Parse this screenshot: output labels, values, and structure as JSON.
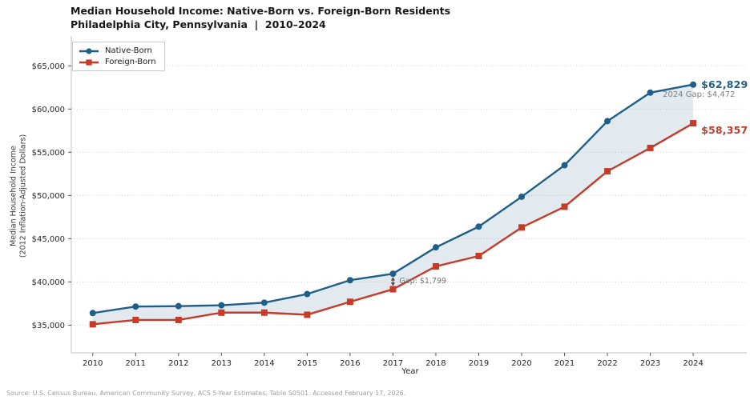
{
  "header": {
    "title_line1": "Median Household Income: Native-Born vs. Foreign-Born Residents",
    "title_line2": "Philadelphia City, Pennsylvania  |  2010–2024"
  },
  "source_note": "Source: U.S. Census Bureau. American Community Survey, ACS 5-Year Estimates, Table S0501. Accessed February 17, 2026.",
  "chart_data": {
    "type": "line",
    "x": [
      2010,
      2011,
      2012,
      2013,
      2014,
      2015,
      2016,
      2017,
      2018,
      2019,
      2020,
      2021,
      2022,
      2023,
      2024
    ],
    "series": [
      {
        "name": "Native-Born",
        "color": "#1f5f87",
        "marker": "circle",
        "values": [
          36400,
          37150,
          37200,
          37300,
          37600,
          38600,
          40200,
          40950,
          44000,
          46400,
          49850,
          53500,
          58600,
          61900,
          62829
        ]
      },
      {
        "name": "Foreign-Born",
        "color": "#c63a28",
        "marker": "square",
        "values": [
          35100,
          35600,
          35600,
          36450,
          36450,
          36200,
          37700,
          39151,
          41800,
          43000,
          46300,
          48700,
          52800,
          55500,
          58357
        ]
      }
    ],
    "fill_between": true,
    "xlabel": "Year",
    "ylabel_line1": "Median Household Income",
    "ylabel_line2": "(2012 Inflation-Adjusted Dollars)",
    "xlim": [
      2009.5,
      2025.25
    ],
    "ylim": [
      31800,
      68450
    ],
    "xticks": [
      2010,
      2011,
      2012,
      2013,
      2014,
      2015,
      2016,
      2017,
      2018,
      2019,
      2020,
      2021,
      2022,
      2023,
      2024
    ],
    "xtick_labels": [
      "2010",
      "2011",
      "2012",
      "2013",
      "2014",
      "2015",
      "2016",
      "2017",
      "2018",
      "2019",
      "2020",
      "2021",
      "2022",
      "2023",
      "2024"
    ],
    "yticks": [
      35000,
      40000,
      45000,
      50000,
      55000,
      60000,
      65000
    ],
    "ytick_labels": [
      "$35,000",
      "$40,000",
      "$45,000",
      "$50,000",
      "$55,000",
      "$60,000",
      "$65,000"
    ],
    "grid": "horizontal-dotted",
    "legend_position": "upper-left",
    "annotations": {
      "end_native": "$62,829",
      "end_foreign": "$58,357",
      "gap_2024": "2024 Gap: $4,472",
      "gap_2017": "Gap: $1,799"
    },
    "style": {
      "grid_color": "#d6d6d6",
      "spine_color": "#bfbfbf",
      "tick_color": "#555555",
      "fill_between_color": "rgba(31,95,135,0.13)",
      "arrow_color": "#4d4d4d"
    }
  }
}
